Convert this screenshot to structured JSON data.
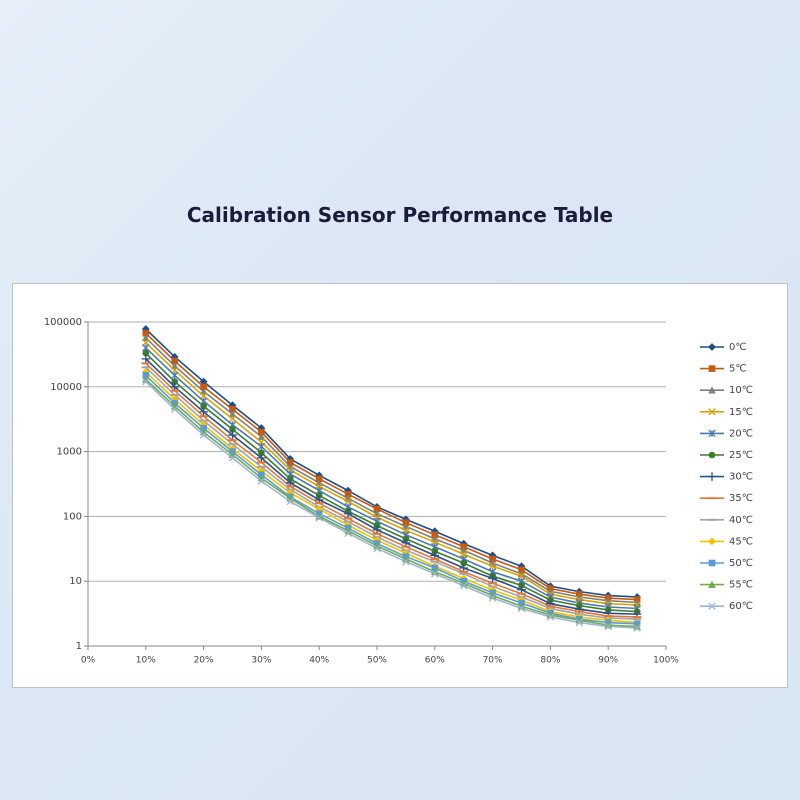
{
  "title": "Calibration Sensor Performance Table",
  "chart_data": {
    "type": "line",
    "log_y": true,
    "grid": true,
    "legend": "right",
    "xlim": [
      0,
      100
    ],
    "ylim": [
      1,
      100000
    ],
    "xticks": [
      {
        "value": 0,
        "label": "0%"
      },
      {
        "value": 10,
        "label": "10%"
      },
      {
        "value": 20,
        "label": "20%"
      },
      {
        "value": 30,
        "label": "30%"
      },
      {
        "value": 40,
        "label": "40%"
      },
      {
        "value": 50,
        "label": "50%"
      },
      {
        "value": 60,
        "label": "60%"
      },
      {
        "value": 70,
        "label": "70%"
      },
      {
        "value": 80,
        "label": "80%"
      },
      {
        "value": 90,
        "label": "90%"
      },
      {
        "value": 100,
        "label": "100%"
      }
    ],
    "yticks": [
      1,
      10,
      100,
      1000,
      10000,
      100000
    ],
    "x": [
      10,
      15,
      20,
      25,
      30,
      35,
      40,
      45,
      50,
      55,
      60,
      65,
      70,
      75,
      80,
      85,
      90,
      95
    ],
    "series": [
      {
        "name": "0℃",
        "color": "#1f4e8c",
        "marker": "diamond",
        "values": [
          78000,
          29000,
          12000,
          5200,
          2300,
          770,
          430,
          250,
          140,
          90,
          59,
          38,
          25,
          17,
          8.4,
          6.9,
          6,
          5.7
        ]
      },
      {
        "name": "5℃",
        "color": "#c55a11",
        "marker": "square",
        "values": [
          67000,
          25000,
          10000,
          4500,
          2000,
          680,
          380,
          220,
          130,
          80,
          52,
          34,
          22,
          15,
          7.7,
          6.3,
          5.5,
          5.2
        ]
      },
      {
        "name": "10℃",
        "color": "#7f7f7f",
        "marker": "triangle",
        "values": [
          57000,
          21000,
          8500,
          3800,
          1700,
          590,
          330,
          190,
          110,
          70,
          45,
          30,
          19,
          13,
          7.0,
          5.7,
          5.0,
          4.7
        ]
      },
      {
        "name": "15℃",
        "color": "#d9a400",
        "marker": "x",
        "values": [
          48000,
          18000,
          7200,
          3200,
          1400,
          520,
          290,
          170,
          97,
          61,
          40,
          26,
          17,
          12,
          6.3,
          5.2,
          4.5,
          4.3
        ]
      },
      {
        "name": "20℃",
        "color": "#4a7ab5",
        "marker": "star",
        "values": [
          40000,
          15000,
          6000,
          2600,
          1200,
          450,
          250,
          140,
          84,
          52,
          34,
          22,
          14,
          10,
          5.7,
          4.6,
          4.0,
          3.8
        ]
      },
      {
        "name": "25℃",
        "color": "#3a7d2c",
        "marker": "circle",
        "values": [
          33000,
          12000,
          5000,
          2200,
          960,
          380,
          210,
          120,
          72,
          45,
          29,
          19,
          12,
          8.6,
          5.1,
          4.2,
          3.6,
          3.4
        ]
      },
      {
        "name": "30℃",
        "color": "#2e4f86",
        "marker": "plus",
        "values": [
          27000,
          10000,
          4100,
          1800,
          800,
          330,
          180,
          110,
          62,
          39,
          25,
          16,
          11,
          7.4,
          4.5,
          3.7,
          3.2,
          3.1
        ]
      },
      {
        "name": "35℃",
        "color": "#e07a3a",
        "marker": "dash",
        "values": [
          23000,
          8700,
          3500,
          1500,
          680,
          290,
          160,
          93,
          54,
          34,
          22,
          14,
          9.3,
          6.4,
          4.1,
          3.4,
          2.9,
          2.8
        ]
      },
      {
        "name": "40℃",
        "color": "#a5a5a5",
        "marker": "dash",
        "values": [
          20000,
          7500,
          3000,
          1300,
          580,
          260,
          140,
          83,
          48,
          30,
          20,
          13,
          8.3,
          5.7,
          3.8,
          3.1,
          2.7,
          2.6
        ]
      },
      {
        "name": "45℃",
        "color": "#f2c200",
        "marker": "diamond",
        "values": [
          17000,
          6400,
          2600,
          1100,
          500,
          230,
          130,
          73,
          43,
          27,
          17,
          11,
          7.3,
          5.1,
          3.4,
          2.8,
          2.5,
          2.3
        ]
      },
      {
        "name": "50℃",
        "color": "#5b9bd5",
        "marker": "square",
        "values": [
          15000,
          5600,
          2300,
          1000,
          440,
          200,
          110,
          66,
          38,
          24,
          16,
          10,
          6.6,
          4.6,
          3.2,
          2.6,
          2.3,
          2.2
        ]
      },
      {
        "name": "55℃",
        "color": "#70ad47",
        "marker": "triangle",
        "values": [
          13000,
          5000,
          2000,
          900,
          390,
          190,
          100,
          60,
          35,
          22,
          14,
          9.3,
          6.0,
          4.1,
          3.0,
          2.5,
          2.1,
          2.0
        ]
      },
      {
        "name": "60℃",
        "color": "#9db3da",
        "marker": "x",
        "values": [
          12000,
          4500,
          1800,
          800,
          350,
          170,
          95,
          55,
          32,
          20,
          13,
          8.5,
          5.5,
          3.8,
          2.8,
          2.3,
          2.0,
          1.9
        ]
      }
    ]
  }
}
